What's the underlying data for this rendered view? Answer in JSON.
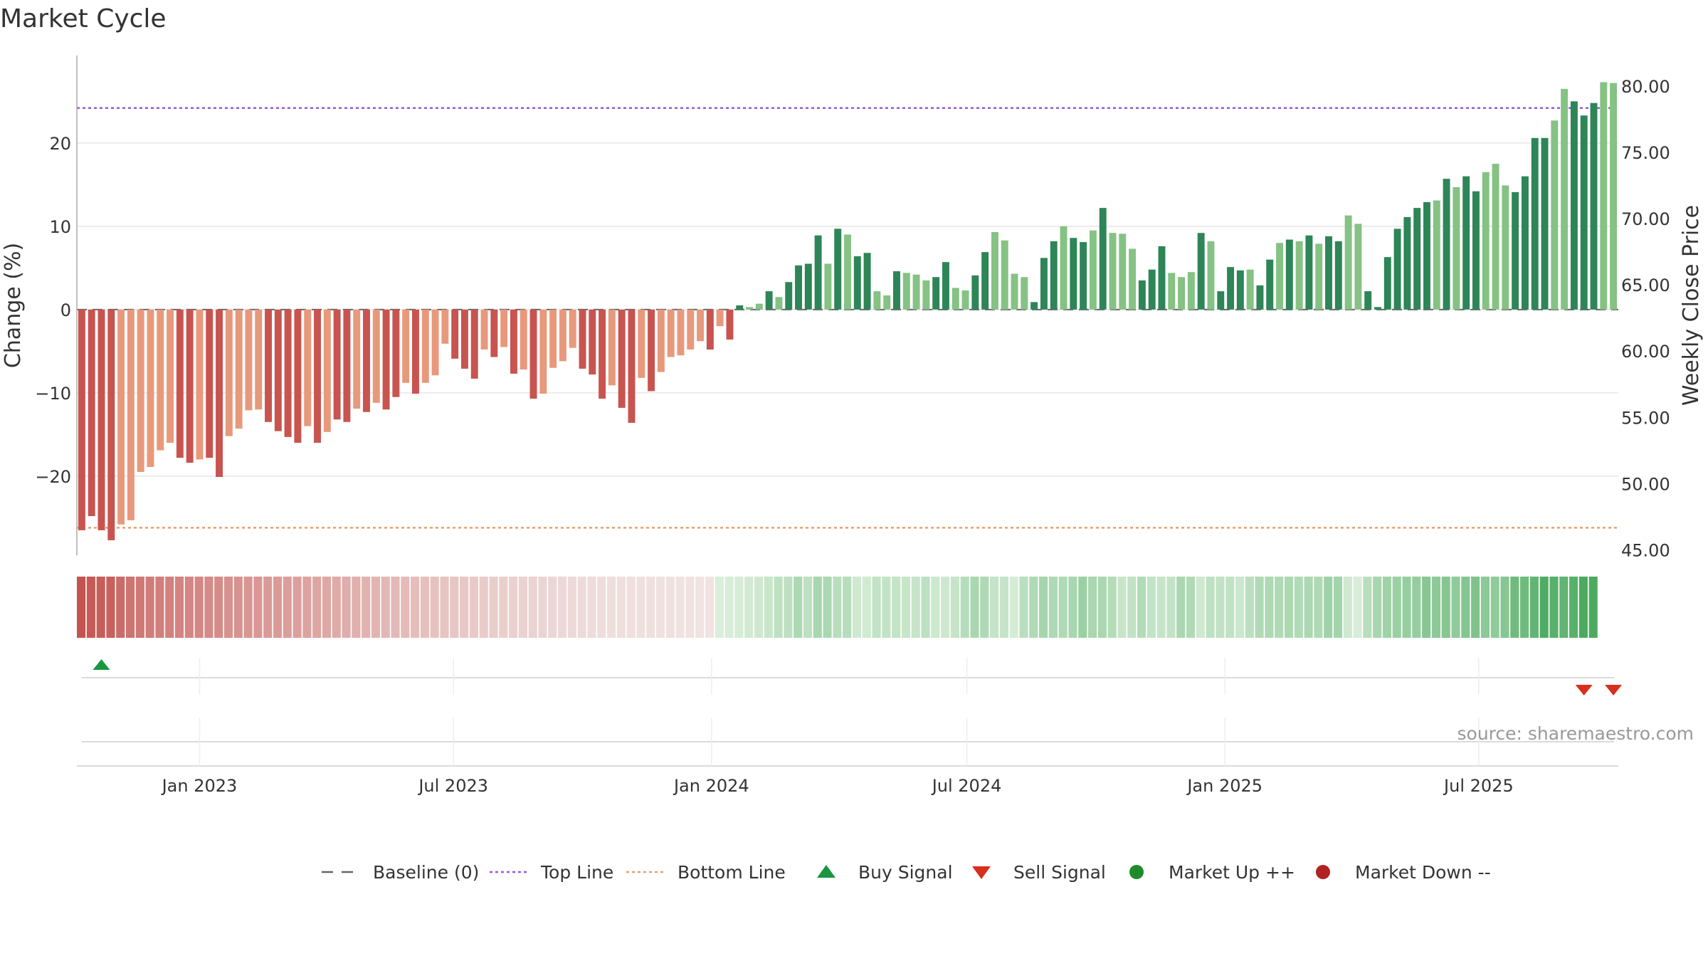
{
  "chart_data": {
    "type": "bar",
    "title": "Market Cycle",
    "ylabel": "Change (%)",
    "y2label": "Weekly Close Price",
    "ylim": [
      -29.5,
      30.5
    ],
    "y2lim": [
      44.6,
      82.3
    ],
    "yticks": [
      "20",
      "10",
      "0",
      "−10",
      "−20"
    ],
    "yticks_values": [
      20,
      10,
      0,
      -10,
      -20
    ],
    "y2ticks": [
      "80.00",
      "75.00",
      "70.00",
      "65.00",
      "60.00",
      "55.00",
      "50.00",
      "45.00"
    ],
    "y2ticks_values": [
      80,
      75,
      70,
      65,
      60,
      55,
      50,
      45
    ],
    "xticks": [
      "Jan 2023",
      "Jul 2023",
      "Jan 2024",
      "Jul 2024",
      "Jan 2025",
      "Jul 2025"
    ],
    "xticks_dates": [
      "2023-01-01",
      "2023-07-01",
      "2024-01-01",
      "2024-07-01",
      "2025-01-01",
      "2025-07-01"
    ],
    "start_date": "2022-10-09",
    "top_line": 24.2,
    "bottom_line": -26.2,
    "baseline": 0,
    "grid": true,
    "legend_position": "bottom",
    "colors": {
      "neg_dark": "#c85450",
      "neg_light": "#e8997c",
      "pos_dark": "#2e8557",
      "pos_light": "#85c284",
      "top_line": "#9b59d0",
      "bottom_line": "#e8a06a",
      "baseline": "#666666",
      "buy": "#1a9641",
      "sell": "#d7301f",
      "market_up": "#1e8c2a",
      "market_down": "#b22222"
    },
    "values": [
      -26.5,
      -24.8,
      -26.5,
      -27.7,
      -25.8,
      -25.3,
      -19.5,
      -18.9,
      -16.9,
      -16,
      -17.8,
      -18.4,
      -18,
      -17.8,
      -20.1,
      -15.2,
      -14.3,
      -12.1,
      -12,
      -13.5,
      -14.6,
      -15.3,
      -16,
      -14,
      -16,
      -14.7,
      -13.2,
      -13.5,
      -11.9,
      -12.3,
      -11.2,
      -12,
      -10.5,
      -8.8,
      -10.1,
      -8.8,
      -7.9,
      -4.1,
      -5.9,
      -7.1,
      -8.3,
      -4.8,
      -5.7,
      -4.5,
      -7.7,
      -7.2,
      -10.7,
      -10.1,
      -7,
      -6.2,
      -4.6,
      -7.1,
      -7.8,
      -10.7,
      -9.1,
      -11.8,
      -13.6,
      -8.2,
      -9.8,
      -7.5,
      -5.7,
      -5.5,
      -4.8,
      -3.8,
      -4.8,
      -2,
      -3.6,
      0.5,
      0.3,
      0.7,
      2.2,
      1.5,
      3.3,
      5.3,
      5.5,
      8.9,
      5.5,
      9.7,
      9,
      6.4,
      6.8,
      2.2,
      1.7,
      4.6,
      4.4,
      4.2,
      3.5,
      3.9,
      5.7,
      2.6,
      2.3,
      4.1,
      6.9,
      9.3,
      8.3,
      4.3,
      3.9,
      0.9,
      6.2,
      8.2,
      10,
      8.6,
      8.1,
      9.5,
      12.2,
      9.2,
      9.1,
      7.3,
      3.5,
      4.8,
      7.6,
      4.4,
      3.9,
      4.5,
      9.2,
      8.2,
      2.2,
      5.1,
      4.7,
      4.8,
      2.9,
      6,
      8,
      8.4,
      8.2,
      8.9,
      7.9,
      8.8,
      8.2,
      11.3,
      10.3,
      2.2,
      0.3,
      6.3,
      9.7,
      11.1,
      12.2,
      12.9,
      13.1,
      15.7,
      14.7,
      16,
      14.2,
      16.5,
      17.5,
      14.9,
      14.1,
      16,
      20.6,
      20.6,
      22.7,
      26.5,
      25,
      23.3,
      24.8,
      27.3,
      27.2
    ],
    "shades": [
      1,
      1,
      1,
      1,
      0,
      0,
      0,
      0,
      0,
      0,
      1,
      1,
      0,
      1,
      1,
      0,
      0,
      0,
      0,
      1,
      1,
      1,
      1,
      0,
      1,
      0,
      1,
      1,
      0,
      1,
      0,
      1,
      1,
      0,
      1,
      0,
      0,
      0,
      1,
      1,
      1,
      0,
      1,
      0,
      1,
      0,
      1,
      0,
      0,
      0,
      0,
      1,
      1,
      1,
      0,
      1,
      1,
      0,
      1,
      0,
      0,
      0,
      0,
      0,
      1,
      0,
      1,
      1,
      0,
      0,
      1,
      0,
      1,
      1,
      1,
      1,
      0,
      1,
      0,
      1,
      1,
      0,
      0,
      1,
      0,
      0,
      0,
      1,
      1,
      0,
      0,
      1,
      1,
      0,
      0,
      0,
      0,
      1,
      1,
      1,
      0,
      1,
      1,
      0,
      1,
      0,
      0,
      0,
      1,
      1,
      1,
      0,
      0,
      0,
      1,
      0,
      1,
      1,
      1,
      0,
      1,
      1,
      0,
      1,
      0,
      1,
      0,
      1,
      1,
      0,
      0,
      1,
      1,
      1,
      1,
      1,
      1,
      1,
      0,
      1,
      0,
      1,
      1,
      0,
      0,
      0,
      1,
      1,
      1,
      1,
      0,
      0,
      1,
      1,
      1
    ],
    "heat_values": [
      -27.7,
      -26.5,
      -25.8,
      -25.3,
      -23,
      -21.5,
      -20.8,
      -20,
      -19.5,
      -19,
      -18.4,
      -18,
      -17.8,
      -17.2,
      -16.9,
      -16,
      -15.5,
      -15,
      -14.6,
      -14.1,
      -14,
      -13.5,
      -13,
      -12.5,
      -12,
      -11.5,
      -11,
      -10.5,
      -10,
      -9.5,
      -9.1,
      -8.6,
      -8.2,
      -7.8,
      -7.4,
      -7,
      -6.6,
      -6.2,
      -5.8,
      -5.4,
      -5,
      -4.7,
      -4.4,
      -4.1,
      -3.8,
      -3.5,
      -3.2,
      -2.9,
      -2.6,
      -2.3,
      -2,
      -1.8,
      -1.6,
      -1.4,
      -1.2,
      -1,
      -0.9,
      -0.8,
      -0.7,
      -0.6,
      -0.5,
      -0.4,
      -0.3,
      -0.2,
      -0.1,
      0,
      0.3,
      0.7,
      1.5,
      2.2,
      3.3,
      5.3,
      5.5,
      8.9,
      5.5,
      9.7,
      9,
      6.4,
      6.8,
      2.2,
      1.7,
      4.6,
      4.4,
      4.2,
      3.5,
      3.9,
      5.7,
      2.6,
      2.3,
      4.1,
      6.9,
      9.3,
      8.3,
      4.3,
      3.9,
      0.9,
      6.2,
      8.2,
      10,
      8.6,
      8.1,
      9.5,
      12.2,
      9.2,
      9.1,
      7.3,
      3.5,
      4.8,
      7.6,
      4.4,
      3.9,
      4.5,
      9.2,
      8.2,
      2.2,
      5.1,
      4.7,
      4.8,
      2.9,
      6,
      8,
      8.4,
      8.2,
      8.9,
      7.9,
      8.8,
      8.2,
      11.3,
      10.3,
      2.2,
      0.3,
      6.3,
      9.7,
      11.1,
      12.2,
      12.9,
      13.1,
      15.7,
      14.7,
      16,
      14.2,
      16.5,
      17.5,
      14.9,
      14.1,
      16,
      20.6,
      20.6,
      22.7,
      26.5,
      25,
      23.3,
      24.8,
      27.3,
      27.2
    ],
    "buy_signals": [
      "2022-10-23"
    ],
    "sell_signals": [
      "2025-09-14",
      "2025-10-05"
    ],
    "source": "source: sharemaestro.com",
    "legend": [
      {
        "label": "Baseline (0)",
        "symbol": "dash-long"
      },
      {
        "label": "Top Line",
        "symbol": "dot-purple"
      },
      {
        "label": "Bottom Line",
        "symbol": "dot-orange"
      },
      {
        "label": "Buy Signal",
        "symbol": "triangle-up"
      },
      {
        "label": "Sell Signal",
        "symbol": "triangle-down"
      },
      {
        "label": "Market Up ++",
        "symbol": "circle-green"
      },
      {
        "label": "Market Down --",
        "symbol": "circle-red"
      }
    ]
  }
}
